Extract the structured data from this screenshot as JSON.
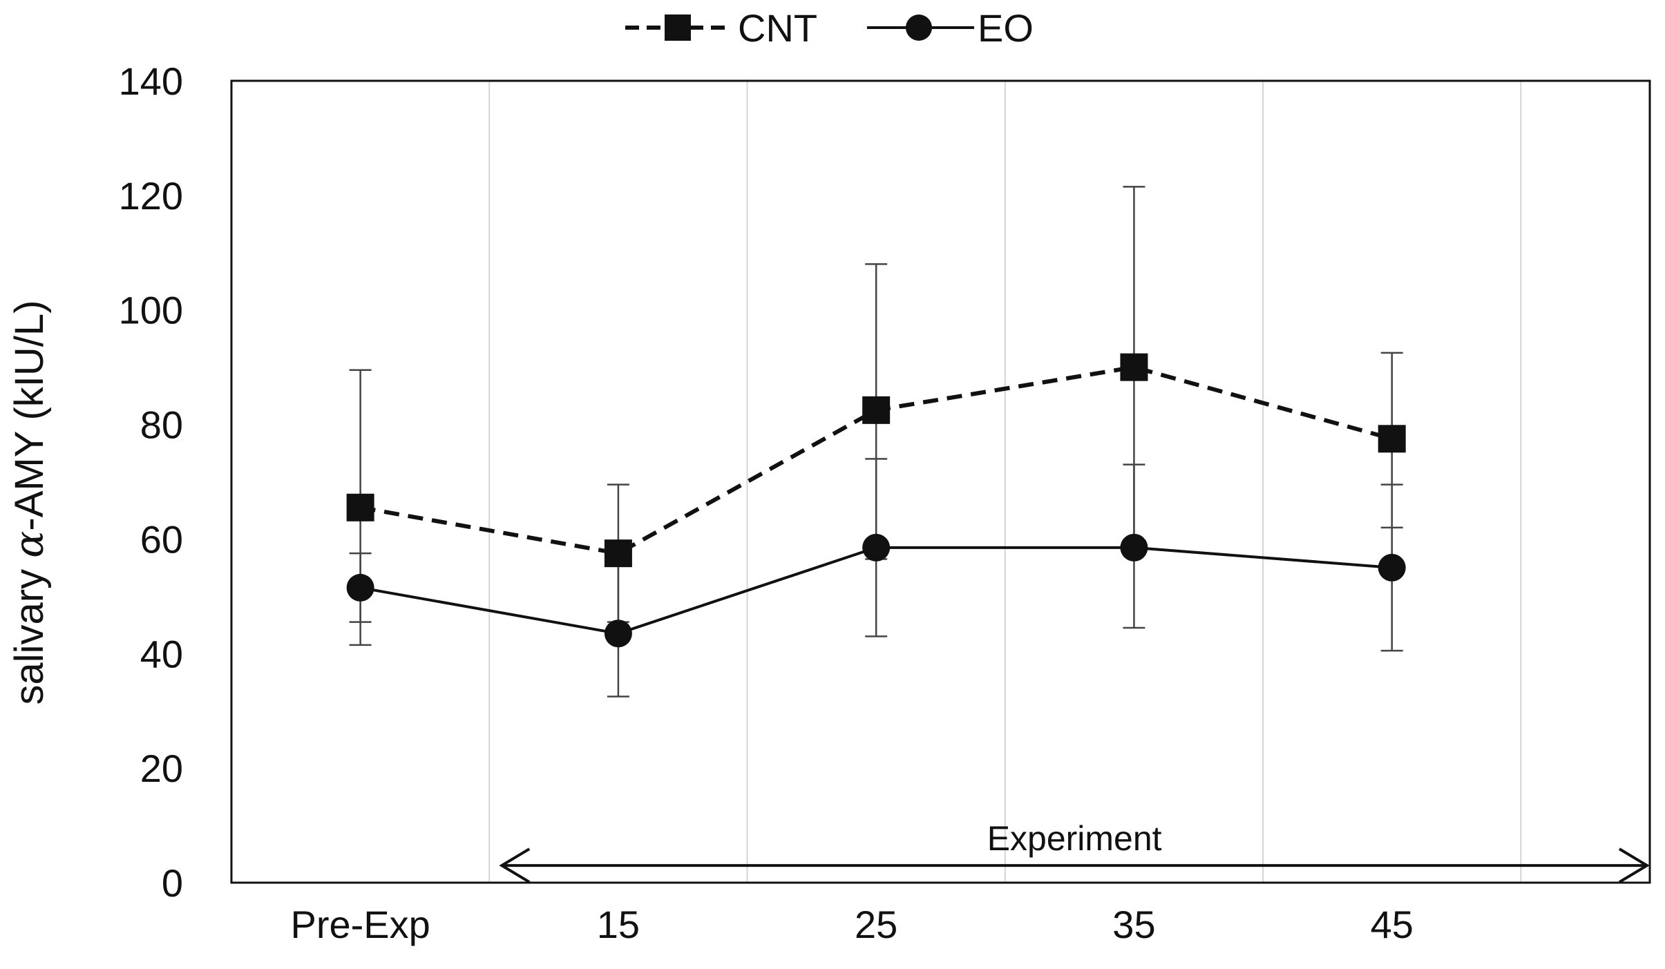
{
  "chart_data": {
    "type": "line",
    "title": "",
    "xlabel": "",
    "ylabel": "salivary α-AMY (kIU/L)",
    "ylabel_prefix": "salivary ",
    "ylabel_greek": "α",
    "ylabel_suffix": "-AMY (kIU/L)",
    "categories": [
      "Pre-Exp",
      "15",
      "25",
      "35",
      "45"
    ],
    "ylim": [
      0,
      140
    ],
    "yticks": [
      "0",
      "20",
      "40",
      "60",
      "80",
      "100",
      "120",
      "140"
    ],
    "grid": "vertical",
    "legend_position": "top-center",
    "series": [
      {
        "name": "CNT",
        "marker": "square",
        "line_style": "dashed",
        "values": [
          65.5,
          57.5,
          82.5,
          90,
          77.5
        ],
        "error_upper": [
          89.5,
          69.5,
          108,
          121.5,
          92.5
        ],
        "error_lower": [
          41.5,
          45.5,
          56.5,
          58.5,
          62
        ]
      },
      {
        "name": "EO",
        "marker": "circle",
        "line_style": "solid",
        "values": [
          51.5,
          43.5,
          58.5,
          58.5,
          55
        ],
        "error_upper": [
          57.5,
          57.5,
          74,
          73,
          69.5
        ],
        "error_lower": [
          45.5,
          32.5,
          43,
          44.5,
          40.5
        ]
      }
    ],
    "annotation": {
      "text": "Experiment",
      "type": "double-arrow",
      "y_value": 3,
      "span": "between Pre-Exp and 15 to right edge of plot"
    }
  },
  "colors": {
    "line": "#111111",
    "grid": "#d4d4d4",
    "background": "#ffffff"
  }
}
